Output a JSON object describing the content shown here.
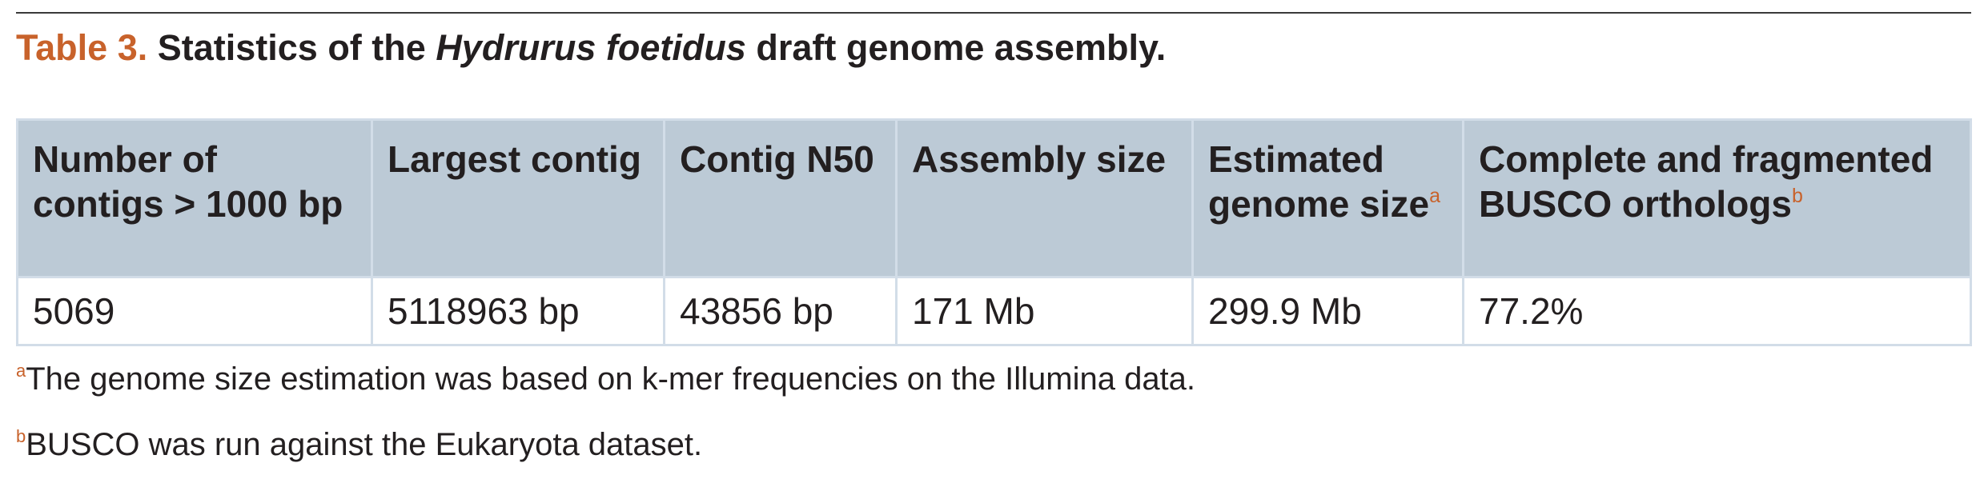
{
  "caption": {
    "label": "Table 3.",
    "text_before": " Statistics of the ",
    "italic": "Hydrurus foetidus",
    "text_after": " draft genome assembly."
  },
  "table": {
    "headers": [
      {
        "line1": "Number of",
        "line2": "contigs > 1000 bp",
        "mark": ""
      },
      {
        "line1": "Largest contig",
        "line2": "",
        "mark": ""
      },
      {
        "line1": "Contig N50",
        "line2": "",
        "mark": ""
      },
      {
        "line1": "Assembly size",
        "line2": "",
        "mark": ""
      },
      {
        "line1": "Estimated",
        "line2": "genome size",
        "mark": "a"
      },
      {
        "line1": "Complete and fragmented",
        "line2": "BUSCO orthologs",
        "mark": "b"
      }
    ],
    "rows": [
      [
        "5069",
        "5118963 bp",
        "43856 bp",
        "171 Mb",
        "299.9 Mb",
        "77.2%"
      ]
    ]
  },
  "footnotes": [
    {
      "mark": "a",
      "text": "The genome size estimation was based on k-mer frequencies on the Illumina data."
    },
    {
      "mark": "b",
      "text": "BUSCO was run against the Eukaryota dataset."
    }
  ]
}
